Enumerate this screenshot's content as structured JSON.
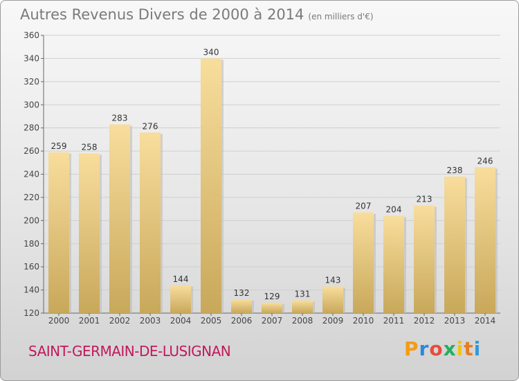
{
  "title": "Autres Revenus Divers de 2000 à 2014",
  "unit": "(en milliers d'€)",
  "commune": "SAINT-GERMAIN-DE-LUSIGNAN",
  "logo": {
    "letters": [
      "P",
      "r",
      "o",
      "x",
      "i",
      "t",
      "i"
    ],
    "colors": [
      "#f39c12",
      "#2e86de",
      "#e74c3c",
      "#27ae60",
      "#f1c40f",
      "#e67e22",
      "#3498db"
    ]
  },
  "colors": {
    "bar_light": "#f7dc9a",
    "bar_dark": "#c9a95c",
    "title": "#7a7a7a",
    "commune": "#c2185b"
  },
  "chart_data": {
    "type": "bar",
    "categories": [
      "2000",
      "2001",
      "2002",
      "2003",
      "2004",
      "2005",
      "2006",
      "2007",
      "2008",
      "2009",
      "2010",
      "2011",
      "2012",
      "2013",
      "2014"
    ],
    "values": [
      259,
      258,
      283,
      276,
      144,
      340,
      132,
      129,
      131,
      143,
      207,
      204,
      213,
      238,
      246
    ],
    "ylim": [
      120,
      360
    ],
    "yticks": [
      120,
      140,
      160,
      180,
      200,
      220,
      240,
      260,
      280,
      300,
      320,
      340,
      360
    ],
    "grid": true
  }
}
